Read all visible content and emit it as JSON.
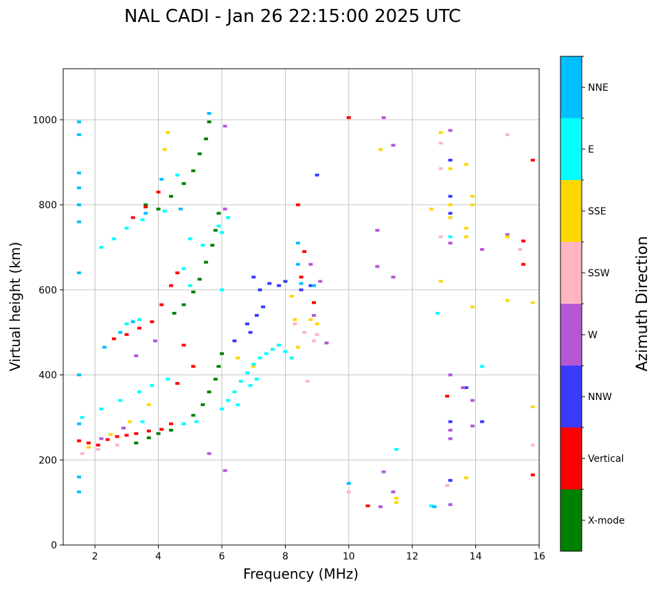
{
  "chart_data": {
    "type": "scatter",
    "title": "NAL CADI - Jan 26 22:15:00 2025 UTC",
    "xlabel": "Frequency (MHz)",
    "ylabel": "Virtual height (km)",
    "xlim": [
      1,
      16
    ],
    "ylim": [
      0,
      1120
    ],
    "xticks": [
      2,
      4,
      6,
      8,
      10,
      12,
      14,
      16
    ],
    "yticks": [
      0,
      200,
      400,
      600,
      800,
      1000
    ],
    "grid": true,
    "colorbar": {
      "label": "Azimuth Direction",
      "categories": [
        {
          "name": "X-mode",
          "color": "#008000"
        },
        {
          "name": "Vertical",
          "color": "#ff0000"
        },
        {
          "name": "NNW",
          "color": "#3a3aff"
        },
        {
          "name": "W",
          "color": "#b657d6"
        },
        {
          "name": "SSW",
          "color": "#ffb6c1"
        },
        {
          "name": "SSE",
          "color": "#ffd700"
        },
        {
          "name": "E",
          "color": "#00ffff"
        },
        {
          "name": "NNE",
          "color": "#00bfff"
        }
      ]
    },
    "traces": [
      {
        "category": "X-mode",
        "points": [
          [
            3.3,
            240
          ],
          [
            3.7,
            252
          ],
          [
            4.0,
            262
          ],
          [
            4.4,
            270
          ],
          [
            4.8,
            285
          ],
          [
            5.1,
            305
          ],
          [
            5.4,
            330
          ],
          [
            5.6,
            360
          ],
          [
            5.8,
            390
          ],
          [
            5.9,
            420
          ],
          [
            6.0,
            450
          ],
          [
            4.5,
            545
          ],
          [
            4.8,
            565
          ],
          [
            5.1,
            595
          ],
          [
            5.3,
            625
          ],
          [
            5.5,
            665
          ],
          [
            5.7,
            705
          ],
          [
            5.8,
            740
          ],
          [
            5.9,
            780
          ],
          [
            3.6,
            800
          ],
          [
            4.0,
            790
          ],
          [
            4.4,
            820
          ],
          [
            4.8,
            850
          ],
          [
            5.1,
            880
          ],
          [
            5.3,
            920
          ],
          [
            5.5,
            955
          ],
          [
            5.6,
            995
          ]
        ]
      },
      {
        "category": "Vertical",
        "points": [
          [
            1.5,
            245
          ],
          [
            1.8,
            240
          ],
          [
            2.1,
            235
          ],
          [
            2.4,
            248
          ],
          [
            2.7,
            255
          ],
          [
            3.0,
            258
          ],
          [
            3.3,
            262
          ],
          [
            3.7,
            268
          ],
          [
            4.1,
            272
          ],
          [
            4.4,
            285
          ],
          [
            2.6,
            485
          ],
          [
            3.0,
            495
          ],
          [
            3.4,
            510
          ],
          [
            3.8,
            525
          ],
          [
            4.1,
            565
          ],
          [
            4.4,
            610
          ],
          [
            4.6,
            640
          ],
          [
            3.2,
            770
          ],
          [
            3.6,
            795
          ],
          [
            4.0,
            830
          ],
          [
            8.4,
            800
          ],
          [
            8.5,
            630
          ],
          [
            8.6,
            690
          ],
          [
            8.9,
            570
          ],
          [
            10.0,
            1005
          ],
          [
            10.6,
            92
          ],
          [
            13.1,
            350
          ],
          [
            15.5,
            715
          ],
          [
            15.5,
            660
          ],
          [
            15.8,
            905
          ],
          [
            15.8,
            165
          ],
          [
            4.6,
            380
          ],
          [
            5.1,
            420
          ],
          [
            4.8,
            470
          ]
        ]
      },
      {
        "category": "NNW",
        "points": [
          [
            6.4,
            480
          ],
          [
            6.9,
            500
          ],
          [
            7.1,
            540
          ],
          [
            7.2,
            600
          ],
          [
            7.5,
            615
          ],
          [
            7.8,
            610
          ],
          [
            8.0,
            620
          ],
          [
            8.5,
            600
          ],
          [
            8.8,
            610
          ],
          [
            7.3,
            560
          ],
          [
            6.8,
            520
          ],
          [
            9.0,
            870
          ],
          [
            13.2,
            905
          ],
          [
            13.2,
            820
          ],
          [
            13.2,
            780
          ],
          [
            13.2,
            290
          ],
          [
            13.2,
            152
          ],
          [
            14.2,
            290
          ],
          [
            13.7,
            370
          ],
          [
            7.0,
            630
          ]
        ]
      },
      {
        "category": "W",
        "points": [
          [
            2.2,
            250
          ],
          [
            2.9,
            275
          ],
          [
            3.3,
            445
          ],
          [
            3.9,
            480
          ],
          [
            6.1,
            790
          ],
          [
            6.1,
            175
          ],
          [
            6.1,
            985
          ],
          [
            5.6,
            215
          ],
          [
            8.8,
            660
          ],
          [
            9.1,
            620
          ],
          [
            9.3,
            475
          ],
          [
            8.9,
            540
          ],
          [
            10.9,
            655
          ],
          [
            10.9,
            740
          ],
          [
            11.0,
            90
          ],
          [
            11.1,
            172
          ],
          [
            11.1,
            1005
          ],
          [
            11.4,
            940
          ],
          [
            11.4,
            630
          ],
          [
            11.4,
            125
          ],
          [
            13.2,
            975
          ],
          [
            13.2,
            710
          ],
          [
            13.2,
            400
          ],
          [
            13.2,
            270
          ],
          [
            13.2,
            250
          ],
          [
            13.6,
            370
          ],
          [
            13.9,
            340
          ],
          [
            13.9,
            280
          ],
          [
            14.2,
            695
          ],
          [
            15.0,
            730
          ],
          [
            13.2,
            95
          ]
        ]
      },
      {
        "category": "SSW",
        "points": [
          [
            1.6,
            215
          ],
          [
            2.1,
            225
          ],
          [
            2.7,
            235
          ],
          [
            8.3,
            520
          ],
          [
            8.6,
            500
          ],
          [
            8.9,
            480
          ],
          [
            9.0,
            495
          ],
          [
            8.7,
            385
          ],
          [
            12.9,
            945
          ],
          [
            12.9,
            885
          ],
          [
            12.9,
            725
          ],
          [
            13.1,
            140
          ],
          [
            15.4,
            695
          ],
          [
            15.8,
            235
          ],
          [
            15.0,
            965
          ],
          [
            10.0,
            125
          ]
        ]
      },
      {
        "category": "SSE",
        "points": [
          [
            1.8,
            230
          ],
          [
            2.5,
            260
          ],
          [
            3.1,
            290
          ],
          [
            3.7,
            330
          ],
          [
            6.5,
            440
          ],
          [
            7.0,
            420
          ],
          [
            8.2,
            585
          ],
          [
            8.3,
            530
          ],
          [
            8.4,
            465
          ],
          [
            8.8,
            530
          ],
          [
            9.0,
            520
          ],
          [
            11.5,
            110
          ],
          [
            11.5,
            100
          ],
          [
            12.6,
            790
          ],
          [
            12.9,
            970
          ],
          [
            12.9,
            620
          ],
          [
            13.2,
            885
          ],
          [
            13.2,
            800
          ],
          [
            13.2,
            770
          ],
          [
            13.7,
            895
          ],
          [
            13.7,
            745
          ],
          [
            13.7,
            725
          ],
          [
            13.7,
            158
          ],
          [
            13.9,
            820
          ],
          [
            13.9,
            800
          ],
          [
            13.9,
            560
          ],
          [
            15.0,
            575
          ],
          [
            15.0,
            725
          ],
          [
            15.8,
            570
          ],
          [
            15.8,
            325
          ],
          [
            4.2,
            930
          ],
          [
            4.3,
            970
          ],
          [
            11.0,
            930
          ]
        ]
      },
      {
        "category": "E",
        "points": [
          [
            1.6,
            300
          ],
          [
            2.2,
            320
          ],
          [
            2.8,
            340
          ],
          [
            3.4,
            360
          ],
          [
            3.8,
            375
          ],
          [
            4.3,
            390
          ],
          [
            6.0,
            320
          ],
          [
            6.2,
            340
          ],
          [
            6.4,
            360
          ],
          [
            6.6,
            385
          ],
          [
            6.8,
            405
          ],
          [
            7.0,
            425
          ],
          [
            7.2,
            440
          ],
          [
            7.4,
            450
          ],
          [
            7.6,
            460
          ],
          [
            7.8,
            470
          ],
          [
            8.0,
            455
          ],
          [
            8.2,
            440
          ],
          [
            7.1,
            390
          ],
          [
            6.9,
            375
          ],
          [
            6.5,
            330
          ],
          [
            5.2,
            290
          ],
          [
            4.8,
            285
          ],
          [
            3.5,
            290
          ],
          [
            2.2,
            700
          ],
          [
            2.6,
            720
          ],
          [
            3.0,
            745
          ],
          [
            3.5,
            765
          ],
          [
            4.2,
            785
          ],
          [
            4.6,
            870
          ],
          [
            5.0,
            720
          ],
          [
            5.4,
            705
          ],
          [
            5.9,
            750
          ],
          [
            6.0,
            735
          ],
          [
            4.8,
            650
          ],
          [
            5.0,
            610
          ],
          [
            3.0,
            520
          ],
          [
            3.4,
            530
          ],
          [
            6.0,
            600
          ],
          [
            12.8,
            545
          ],
          [
            13.2,
            725
          ],
          [
            14.2,
            420
          ],
          [
            11.5,
            225
          ],
          [
            12.6,
            92
          ],
          [
            6.2,
            770
          ]
        ]
      },
      {
        "category": "NNE",
        "points": [
          [
            1.5,
            995
          ],
          [
            1.5,
            965
          ],
          [
            1.5,
            875
          ],
          [
            1.5,
            840
          ],
          [
            1.5,
            800
          ],
          [
            1.5,
            760
          ],
          [
            1.5,
            640
          ],
          [
            1.5,
            400
          ],
          [
            1.5,
            285
          ],
          [
            1.5,
            160
          ],
          [
            1.5,
            125
          ],
          [
            2.3,
            465
          ],
          [
            2.8,
            500
          ],
          [
            3.2,
            525
          ],
          [
            3.6,
            780
          ],
          [
            4.1,
            860
          ],
          [
            4.7,
            790
          ],
          [
            5.6,
            1015
          ],
          [
            8.4,
            710
          ],
          [
            8.4,
            660
          ],
          [
            8.9,
            610
          ],
          [
            8.5,
            615
          ],
          [
            10.0,
            145
          ],
          [
            12.7,
            90
          ]
        ]
      }
    ]
  }
}
